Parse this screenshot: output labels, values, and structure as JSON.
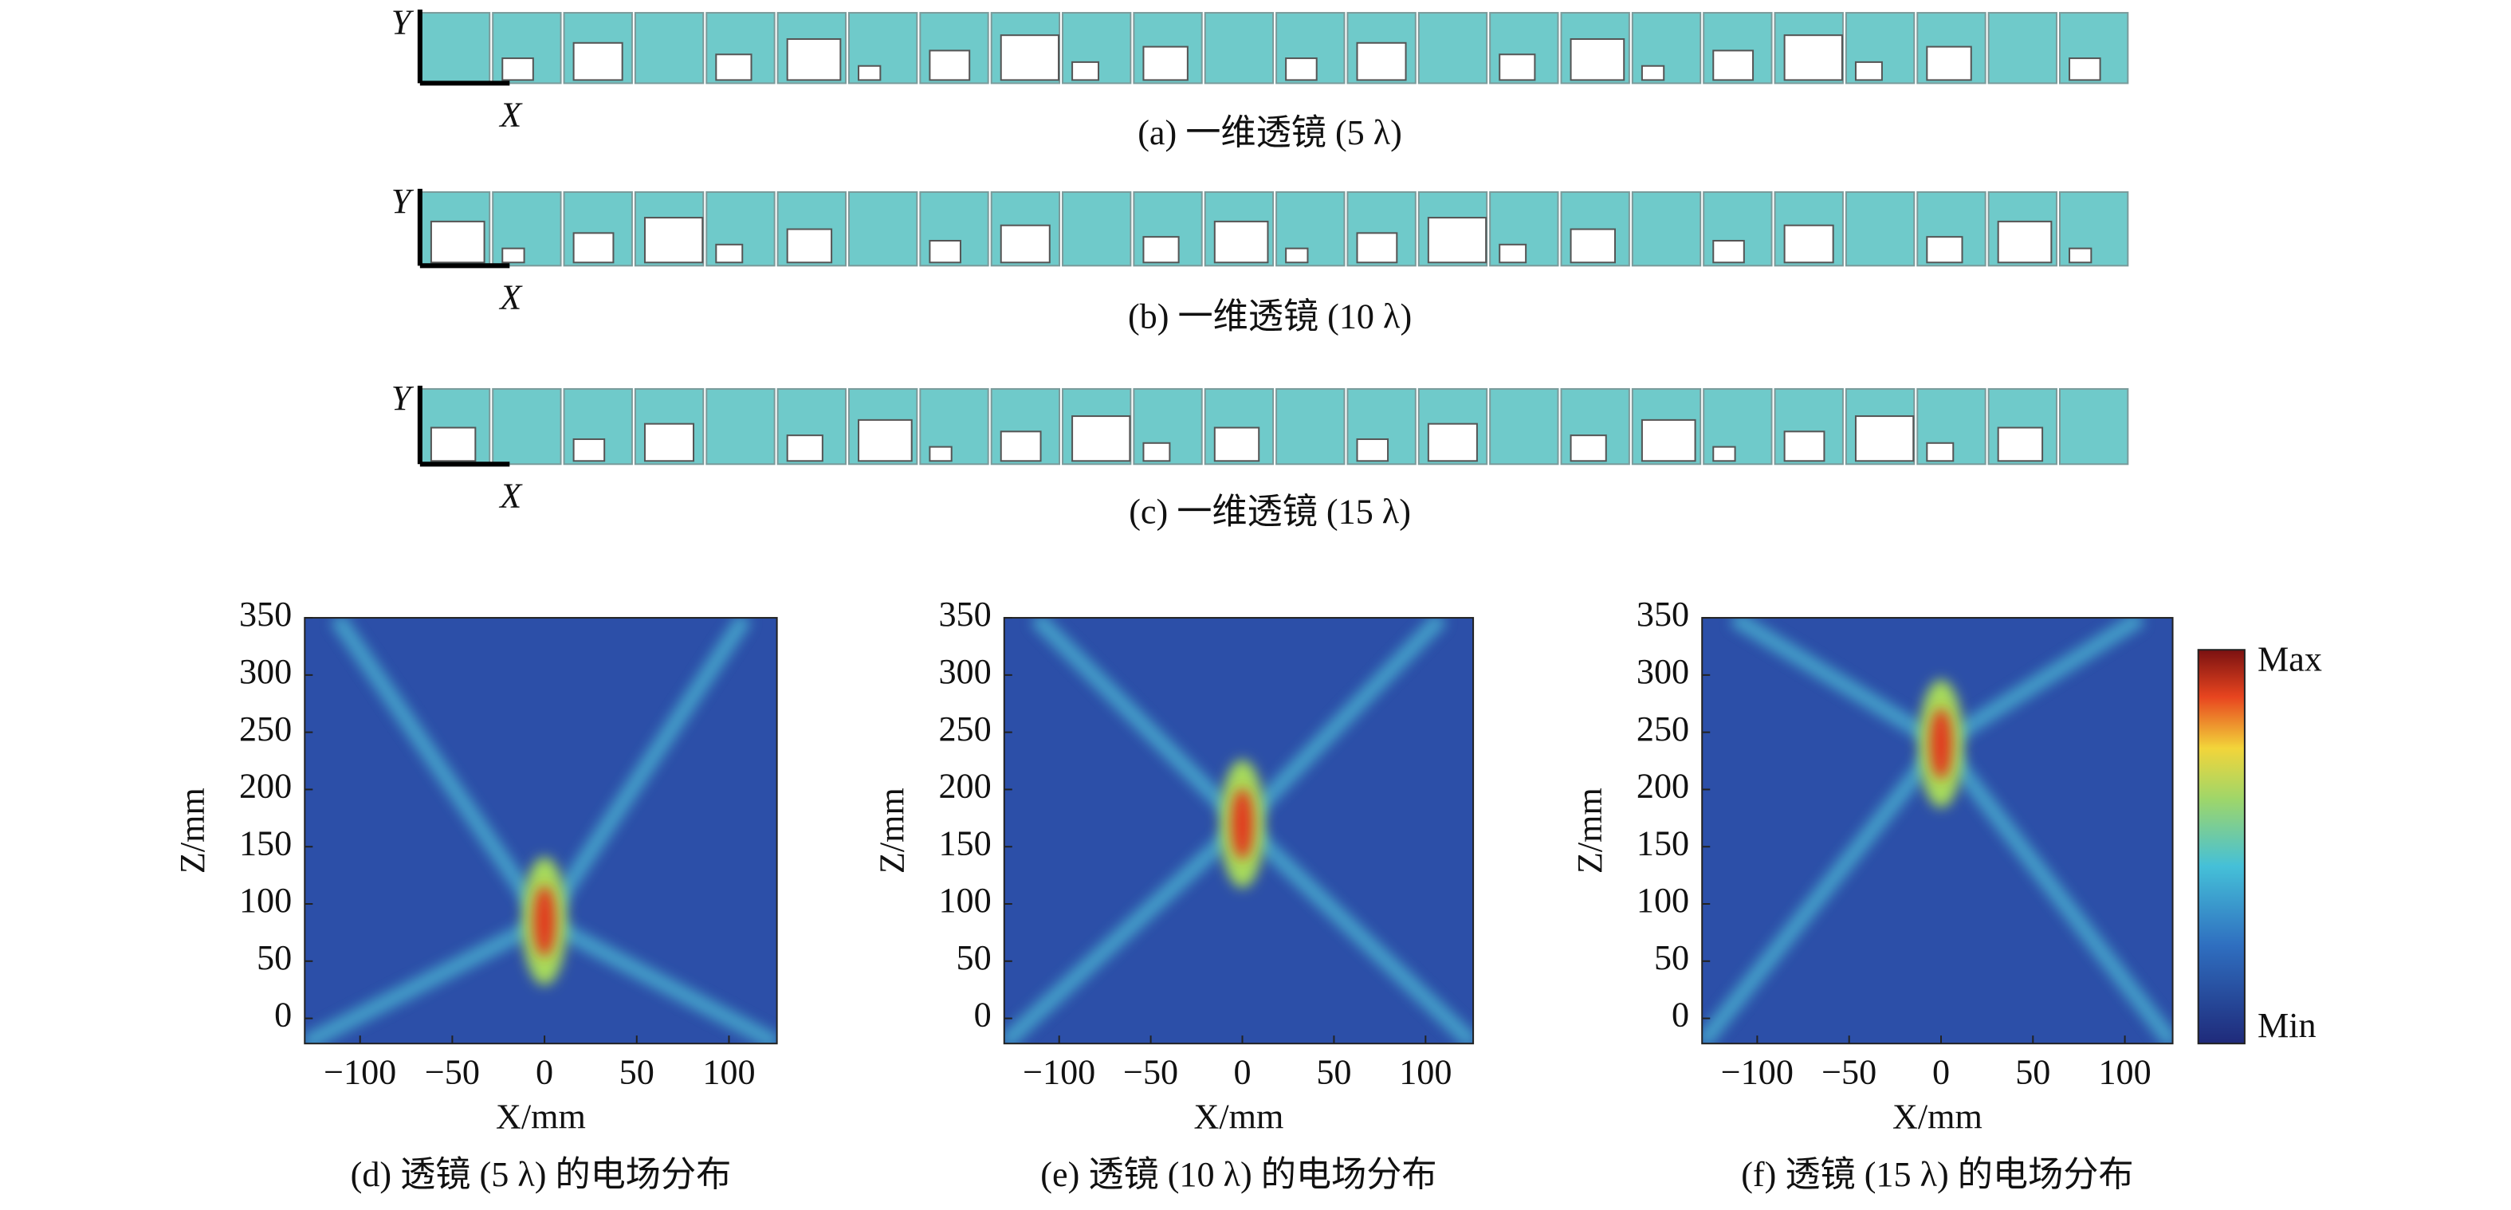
{
  "lens_panels": [
    {
      "caption": "(a) 一维透镜 (5 λ)",
      "x_label": "X",
      "y_label": "Y"
    },
    {
      "caption": "(b) 一维透镜 (10 λ)",
      "x_label": "X",
      "y_label": "Y"
    },
    {
      "caption": "(c) 一维透镜 (15 λ)",
      "x_label": "X",
      "y_label": "Y"
    }
  ],
  "field_plots": [
    {
      "caption": "(d) 透镜 (5 λ) 的电场分布",
      "xlabel": "X/mm",
      "ylabel": "Z/mm",
      "xlim": [
        -130,
        126
      ],
      "ylim": [
        -22,
        350
      ],
      "xticks": [
        {
          "value": -100,
          "label": "−100"
        },
        {
          "value": -50,
          "label": "−50"
        },
        0,
        50,
        100
      ],
      "yticks": [
        0,
        50,
        100,
        150,
        200,
        250,
        300,
        350
      ]
    },
    {
      "caption": "(e) 透镜 (10 λ) 的电场分布",
      "xlabel": "X/mm",
      "ylabel": "Z/mm",
      "xlim": [
        -130,
        126
      ],
      "ylim": [
        -22,
        350
      ],
      "xticks": [
        {
          "value": -100,
          "label": "−100"
        },
        {
          "value": -50,
          "label": "−50"
        },
        0,
        50,
        100
      ],
      "yticks": [
        0,
        50,
        100,
        150,
        200,
        250,
        300,
        350
      ]
    },
    {
      "caption": "(f) 透镜 (15 λ) 的电场分布",
      "xlabel": "X/mm",
      "ylabel": "Z/mm",
      "xlim": [
        -130,
        126
      ],
      "ylim": [
        -22,
        350
      ],
      "xticks": [
        {
          "value": -100,
          "label": "−100"
        },
        {
          "value": -50,
          "label": "−50"
        },
        0,
        50,
        100
      ],
      "yticks": [
        0,
        50,
        100,
        150,
        200,
        250,
        300,
        350
      ]
    }
  ],
  "colorbar": {
    "max_label": "Max",
    "min_label": "Min"
  }
}
